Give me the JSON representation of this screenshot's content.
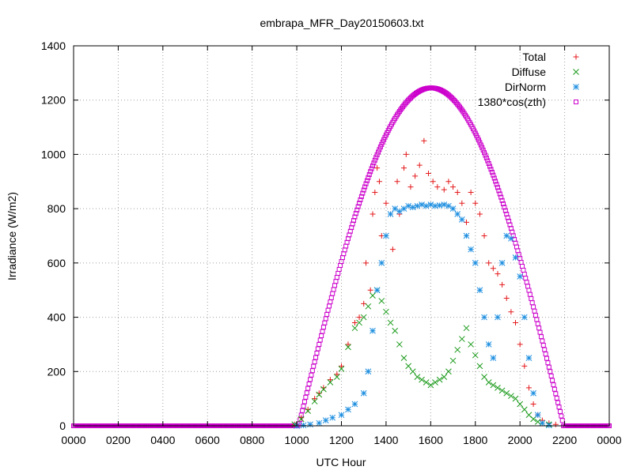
{
  "chart_data": {
    "type": "scatter",
    "title": "embrapa_MFR_Day20150603.txt",
    "xlabel": "UTC Hour",
    "ylabel": "Irradiance (W/m2)",
    "xlim": [
      0,
      24
    ],
    "ylim": [
      0,
      1400
    ],
    "x_ticks": [
      {
        "v": 0,
        "label": "0000"
      },
      {
        "v": 2,
        "label": "0200"
      },
      {
        "v": 4,
        "label": "0400"
      },
      {
        "v": 6,
        "label": "0600"
      },
      {
        "v": 8,
        "label": "0800"
      },
      {
        "v": 10,
        "label": "1000"
      },
      {
        "v": 12,
        "label": "1200"
      },
      {
        "v": 14,
        "label": "1400"
      },
      {
        "v": 16,
        "label": "1600"
      },
      {
        "v": 18,
        "label": "1800"
      },
      {
        "v": 20,
        "label": "2000"
      },
      {
        "v": 22,
        "label": "2200"
      },
      {
        "v": 24,
        "label": "0000"
      }
    ],
    "y_ticks": [
      {
        "v": 0,
        "label": "0"
      },
      {
        "v": 200,
        "label": "200"
      },
      {
        "v": 400,
        "label": "400"
      },
      {
        "v": 600,
        "label": "600"
      },
      {
        "v": 800,
        "label": "800"
      },
      {
        "v": 1000,
        "label": "1000"
      },
      {
        "v": 1200,
        "label": "1200"
      },
      {
        "v": 1400,
        "label": "1400"
      }
    ],
    "grid": true,
    "legend_position": "top-right",
    "series": [
      {
        "name": "Total",
        "marker": "plus",
        "color": "#e41a1c",
        "points": [
          [
            9.9,
            5
          ],
          [
            10.2,
            30
          ],
          [
            10.5,
            60
          ],
          [
            10.8,
            100
          ],
          [
            11,
            120
          ],
          [
            11.2,
            140
          ],
          [
            11.5,
            170
          ],
          [
            11.8,
            190
          ],
          [
            12,
            220
          ],
          [
            12.3,
            300
          ],
          [
            12.6,
            380
          ],
          [
            12.8,
            400
          ],
          [
            13,
            450
          ],
          [
            13.1,
            600
          ],
          [
            13.3,
            500
          ],
          [
            13.4,
            780
          ],
          [
            13.5,
            860
          ],
          [
            13.6,
            950
          ],
          [
            13.7,
            900
          ],
          [
            13.8,
            700
          ],
          [
            14,
            820
          ],
          [
            14.2,
            780
          ],
          [
            14.3,
            650
          ],
          [
            14.5,
            900
          ],
          [
            14.6,
            780
          ],
          [
            14.8,
            950
          ],
          [
            14.9,
            1000
          ],
          [
            15.1,
            880
          ],
          [
            15.3,
            920
          ],
          [
            15.5,
            960
          ],
          [
            15.7,
            1050
          ],
          [
            15.9,
            930
          ],
          [
            16.1,
            900
          ],
          [
            16.3,
            880
          ],
          [
            16.6,
            870
          ],
          [
            16.8,
            900
          ],
          [
            17,
            880
          ],
          [
            17.2,
            860
          ],
          [
            17.4,
            820
          ],
          [
            17.6,
            750
          ],
          [
            17.8,
            860
          ],
          [
            18,
            820
          ],
          [
            18.2,
            780
          ],
          [
            18.4,
            700
          ],
          [
            18.6,
            600
          ],
          [
            18.8,
            580
          ],
          [
            19,
            560
          ],
          [
            19.2,
            520
          ],
          [
            19.4,
            470
          ],
          [
            19.6,
            420
          ],
          [
            19.8,
            380
          ],
          [
            20,
            300
          ],
          [
            20.2,
            220
          ],
          [
            20.4,
            140
          ],
          [
            20.6,
            80
          ],
          [
            20.8,
            40
          ],
          [
            21,
            20
          ],
          [
            21.3,
            10
          ],
          [
            21.6,
            5
          ]
        ]
      },
      {
        "name": "Diffuse",
        "marker": "cross",
        "color": "#1a9a1a",
        "points": [
          [
            9.9,
            5
          ],
          [
            10.2,
            25
          ],
          [
            10.5,
            55
          ],
          [
            10.8,
            90
          ],
          [
            11,
            115
          ],
          [
            11.2,
            135
          ],
          [
            11.5,
            160
          ],
          [
            11.8,
            180
          ],
          [
            12,
            210
          ],
          [
            12.3,
            290
          ],
          [
            12.6,
            360
          ],
          [
            12.8,
            380
          ],
          [
            13,
            400
          ],
          [
            13.2,
            440
          ],
          [
            13.4,
            480
          ],
          [
            13.6,
            500
          ],
          [
            13.8,
            460
          ],
          [
            14,
            420
          ],
          [
            14.2,
            380
          ],
          [
            14.4,
            350
          ],
          [
            14.6,
            300
          ],
          [
            14.8,
            250
          ],
          [
            15,
            220
          ],
          [
            15.2,
            200
          ],
          [
            15.4,
            180
          ],
          [
            15.6,
            170
          ],
          [
            15.8,
            160
          ],
          [
            16,
            150
          ],
          [
            16.2,
            160
          ],
          [
            16.4,
            170
          ],
          [
            16.6,
            180
          ],
          [
            16.8,
            200
          ],
          [
            17,
            240
          ],
          [
            17.2,
            280
          ],
          [
            17.4,
            320
          ],
          [
            17.6,
            360
          ],
          [
            17.8,
            300
          ],
          [
            18,
            260
          ],
          [
            18.2,
            220
          ],
          [
            18.4,
            180
          ],
          [
            18.6,
            160
          ],
          [
            18.8,
            150
          ],
          [
            19,
            140
          ],
          [
            19.2,
            130
          ],
          [
            19.4,
            120
          ],
          [
            19.6,
            110
          ],
          [
            19.8,
            100
          ],
          [
            20,
            80
          ],
          [
            20.2,
            60
          ],
          [
            20.4,
            40
          ],
          [
            20.6,
            25
          ],
          [
            20.8,
            15
          ],
          [
            21,
            10
          ],
          [
            21.3,
            5
          ]
        ]
      },
      {
        "name": "DirNorm",
        "marker": "star",
        "color": "#1e8fe0",
        "points": [
          [
            10,
            0
          ],
          [
            10.3,
            2
          ],
          [
            10.6,
            5
          ],
          [
            11,
            10
          ],
          [
            11.3,
            20
          ],
          [
            11.6,
            30
          ],
          [
            12,
            40
          ],
          [
            12.3,
            60
          ],
          [
            12.6,
            80
          ],
          [
            13,
            120
          ],
          [
            13.2,
            200
          ],
          [
            13.4,
            350
          ],
          [
            13.6,
            500
          ],
          [
            13.8,
            600
          ],
          [
            14,
            700
          ],
          [
            14.2,
            780
          ],
          [
            14.4,
            800
          ],
          [
            14.6,
            790
          ],
          [
            14.8,
            800
          ],
          [
            15,
            810
          ],
          [
            15.2,
            805
          ],
          [
            15.4,
            810
          ],
          [
            15.6,
            815
          ],
          [
            15.8,
            810
          ],
          [
            16,
            815
          ],
          [
            16.2,
            810
          ],
          [
            16.4,
            812
          ],
          [
            16.6,
            815
          ],
          [
            16.8,
            810
          ],
          [
            17,
            800
          ],
          [
            17.2,
            780
          ],
          [
            17.4,
            760
          ],
          [
            17.6,
            700
          ],
          [
            17.8,
            650
          ],
          [
            18,
            600
          ],
          [
            18.2,
            500
          ],
          [
            18.4,
            400
          ],
          [
            18.6,
            300
          ],
          [
            18.8,
            250
          ],
          [
            19,
            400
          ],
          [
            19.2,
            600
          ],
          [
            19.4,
            700
          ],
          [
            19.6,
            690
          ],
          [
            19.8,
            620
          ],
          [
            20,
            550
          ],
          [
            20.2,
            400
          ],
          [
            20.4,
            250
          ],
          [
            20.6,
            120
          ],
          [
            20.8,
            40
          ],
          [
            21,
            10
          ],
          [
            21.3,
            2
          ]
        ]
      },
      {
        "name": "1380*cos(zth)",
        "marker": "square",
        "color": "#cc00cc",
        "curve": {
          "sunrise": 10.08,
          "noon": 16.02,
          "sunset": 21.95,
          "peak": 1245
        }
      }
    ]
  }
}
